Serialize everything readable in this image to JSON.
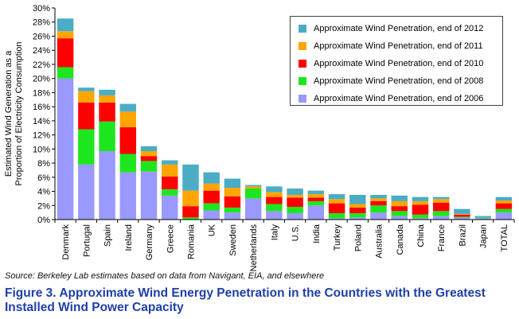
{
  "chart_data": {
    "type": "bar",
    "stacked": true,
    "ylabel": "Estimated Wind Generation as a Proportion of Electricity Consumption",
    "ylim": [
      0,
      30
    ],
    "yticks": [
      "0%",
      "2%",
      "4%",
      "6%",
      "8%",
      "10%",
      "12%",
      "14%",
      "16%",
      "18%",
      "20%",
      "22%",
      "24%",
      "26%",
      "28%",
      "30%"
    ],
    "grid": false,
    "legend_position": "top-right",
    "categories": [
      "Denmark",
      "Portugal",
      "Spain",
      "Ireland",
      "Germany",
      "Greece",
      "Romania",
      "UK",
      "Sweden",
      "Netherlands",
      "Italy",
      "U.S.",
      "India",
      "Turkey",
      "Poland",
      "Australia",
      "Canada",
      "China",
      "France",
      "Brazil",
      "Japan",
      "TOTAL"
    ],
    "series": [
      {
        "name": "Approximate Wind Penetration, end of 2006",
        "color": "#9999ff",
        "values": [
          20.0,
          7.8,
          9.7,
          6.7,
          6.8,
          3.4,
          0.0,
          1.3,
          1.0,
          3.0,
          1.2,
          0.9,
          2.0,
          0.2,
          0.3,
          1.0,
          0.5,
          0.2,
          0.5,
          0.3,
          0.2,
          1.0
        ]
      },
      {
        "name": "Approximate Wind Penetration, end of 2008",
        "color": "#1ee61e",
        "values": [
          1.6,
          5.0,
          4.2,
          2.6,
          1.5,
          0.9,
          0.3,
          1.0,
          0.7,
          1.4,
          1.0,
          0.9,
          0.6,
          0.7,
          0.6,
          1.0,
          0.7,
          0.5,
          0.7,
          0.1,
          0.1,
          0.5
        ]
      },
      {
        "name": "Approximate Wind Penetration, end of 2010",
        "color": "#ff0000",
        "values": [
          4.1,
          3.8,
          2.7,
          3.8,
          0.7,
          1.8,
          1.6,
          1.8,
          1.6,
          0.0,
          1.0,
          1.3,
          0.5,
          1.4,
          0.8,
          0.6,
          0.7,
          1.4,
          1.2,
          0.3,
          0.0,
          0.8
        ]
      },
      {
        "name": "Approximate Wind Penetration, end of 2011",
        "color": "#ffa500",
        "values": [
          1.0,
          1.6,
          1.0,
          2.2,
          0.7,
          1.7,
          2.2,
          1.0,
          1.2,
          0.3,
          0.7,
          0.4,
          0.5,
          0.6,
          0.5,
          0.4,
          0.7,
          0.5,
          0.5,
          0.1,
          0.0,
          0.4
        ]
      },
      {
        "name": "Approximate Wind Penetration, end of 2012",
        "color": "#4bacc6",
        "values": [
          1.8,
          0.5,
          0.8,
          1.1,
          0.7,
          0.6,
          3.7,
          1.6,
          1.3,
          0.2,
          0.8,
          0.9,
          0.5,
          0.7,
          1.3,
          0.5,
          0.8,
          0.6,
          0.3,
          0.7,
          0.2,
          0.5
        ]
      }
    ],
    "legend_order": [
      4,
      3,
      2,
      1,
      0
    ]
  },
  "source_text": "Source: Berkeley Lab estimates based on data from Navigant, EIA, and elsewhere",
  "caption": "Figure 3. Approximate Wind Energy Penetration in the Countries with the Greatest Installed Wind Power Capacity"
}
